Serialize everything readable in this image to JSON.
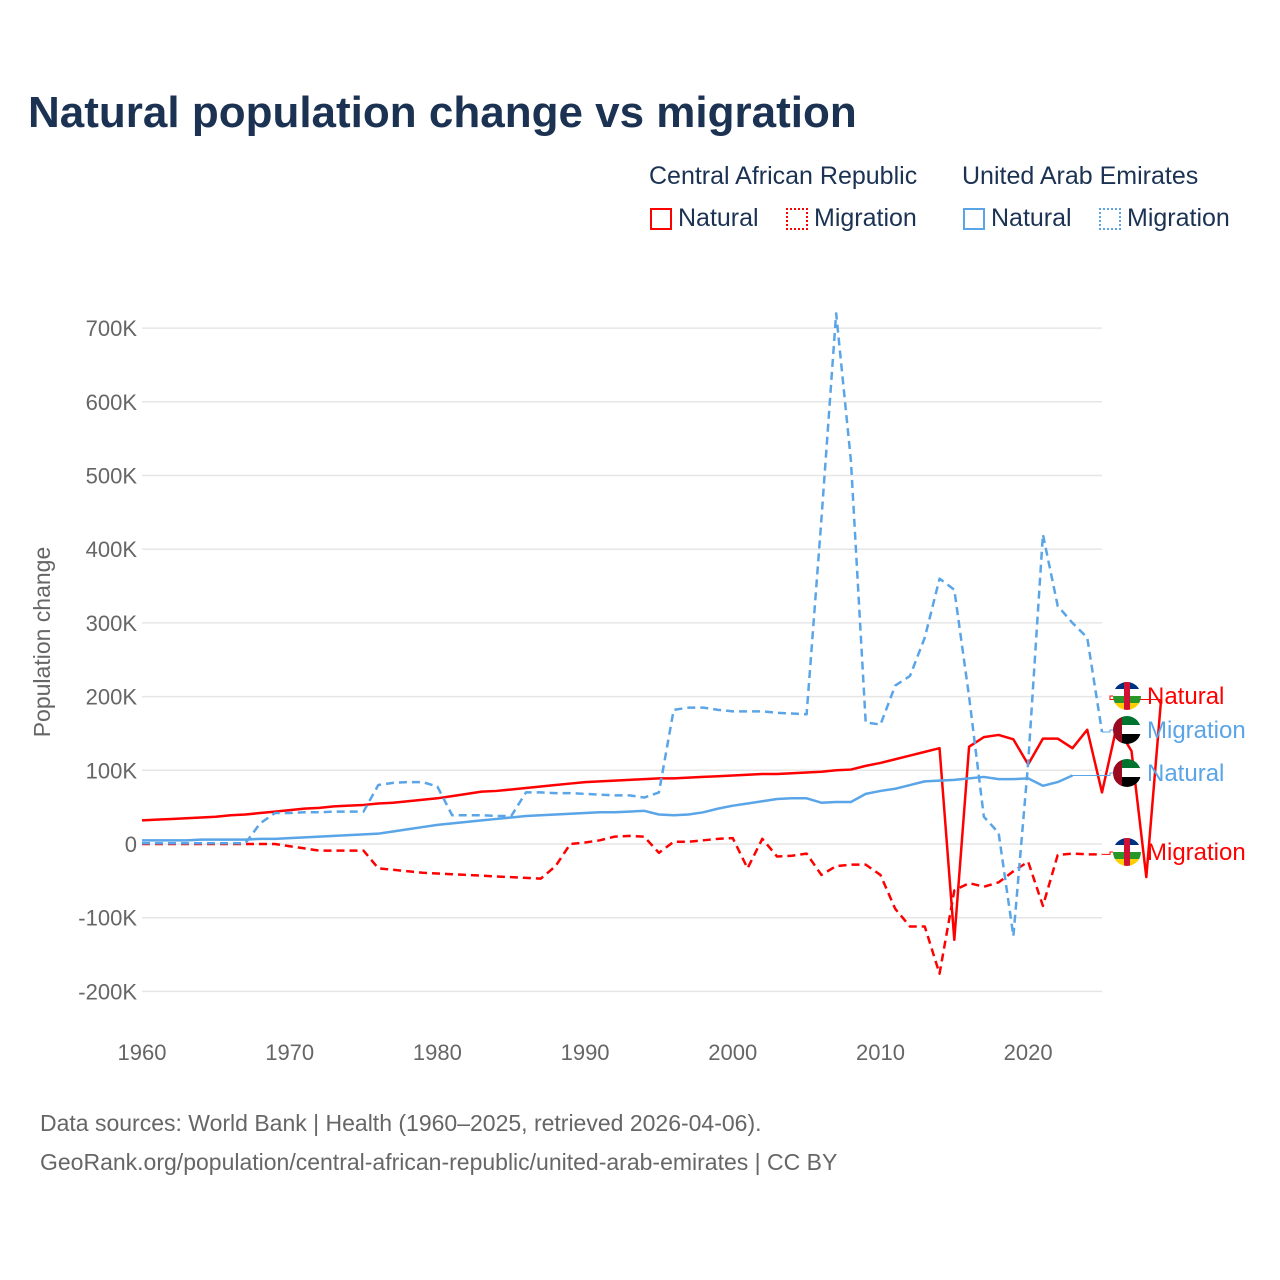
{
  "chart_data": {
    "type": "line",
    "title": "Natural population change vs migration",
    "xlabel": "",
    "ylabel": "Population change",
    "xlim": [
      1960,
      2025
    ],
    "ylim": [
      -200000,
      700000
    ],
    "x_ticks": [
      "1960",
      "1970",
      "1980",
      "1990",
      "2000",
      "2010",
      "2020"
    ],
    "y_ticks": [
      {
        "v": -200000,
        "label": "-200K"
      },
      {
        "v": -100000,
        "label": "-100K"
      },
      {
        "v": 0,
        "label": "0"
      },
      {
        "v": 100000,
        "label": "100K"
      },
      {
        "v": 200000,
        "label": "200K"
      },
      {
        "v": 300000,
        "label": "300K"
      },
      {
        "v": 400000,
        "label": "400K"
      },
      {
        "v": 500000,
        "label": "500K"
      },
      {
        "v": 600000,
        "label": "600K"
      },
      {
        "v": 700000,
        "label": "700K"
      }
    ],
    "grid": true,
    "legend": {
      "groups": [
        {
          "country": "Central African Republic",
          "items": [
            "Natural",
            "Migration"
          ]
        },
        {
          "country": "United Arab Emirates",
          "items": [
            "Natural",
            "Migration"
          ]
        }
      ],
      "placement": "top-right"
    },
    "series": [
      {
        "name": "Central African Republic – Natural",
        "label": "Natural",
        "color": "#ff0000",
        "dash": false,
        "start": 1960,
        "values": [
          32,
          33,
          34,
          35,
          36,
          37,
          39,
          40,
          42,
          44,
          46,
          48,
          49,
          51,
          52,
          53,
          55,
          56,
          58,
          60,
          62,
          65,
          68,
          71,
          72,
          74,
          76,
          78,
          80,
          82,
          84,
          85,
          86,
          87,
          88,
          89,
          89,
          90,
          91,
          92,
          93,
          94,
          95,
          95,
          96,
          97,
          98,
          100,
          101,
          106,
          110,
          115,
          120,
          125,
          130,
          -130,
          132,
          145,
          148,
          142,
          108,
          143,
          143,
          130,
          155,
          70,
          160,
          126,
          -45,
          196
        ]
      },
      {
        "name": "Central African Republic – Migration",
        "label": "Migration",
        "color": "#ff0000",
        "dash": true,
        "start": 1960,
        "values": [
          0,
          0,
          0,
          0,
          0,
          0,
          0,
          0,
          0,
          0,
          -3,
          -6,
          -9,
          -9,
          -9,
          -9,
          -33,
          -35,
          -37,
          -39,
          -40,
          -41,
          -42,
          -43,
          -44,
          -45,
          -46,
          -47,
          -30,
          0,
          2,
          5,
          10,
          11,
          10,
          -12,
          3,
          3,
          5,
          7,
          8,
          -33,
          7,
          -17,
          -16,
          -13,
          -42,
          -30,
          -28,
          -28,
          -42,
          -88,
          -112,
          -112,
          -176,
          -63,
          -53,
          -58,
          -52,
          -37,
          -24,
          -84,
          -15,
          -13,
          -14,
          -14
        ]
      },
      {
        "name": "United Arab Emirates – Natural",
        "label": "Natural",
        "color": "#5aa5e8",
        "dash": false,
        "start": 1960,
        "values": [
          5,
          5,
          5,
          5,
          6,
          6,
          6,
          6,
          7,
          7,
          8,
          9,
          10,
          11,
          12,
          13,
          14,
          17,
          20,
          23,
          26,
          28,
          30,
          32,
          34,
          36,
          38,
          39,
          40,
          41,
          42,
          43,
          43,
          44,
          45,
          40,
          39,
          40,
          43,
          48,
          52,
          55,
          58,
          61,
          62,
          62,
          56,
          57,
          57,
          68,
          72,
          75,
          80,
          85,
          86,
          87,
          89,
          91,
          88,
          88,
          89,
          79,
          84,
          93
        ]
      },
      {
        "name": "United Arab Emirates – Migration",
        "label": "Migration",
        "color": "#5aa5e8",
        "dash": true,
        "start": 1960,
        "values": [
          1,
          1,
          1,
          1,
          1,
          1,
          1,
          1,
          28,
          42,
          42,
          43,
          43,
          44,
          44,
          44,
          80,
          83,
          84,
          84,
          78,
          39,
          39,
          39,
          38,
          38,
          70,
          70,
          69,
          69,
          68,
          67,
          66,
          66,
          63,
          70,
          182,
          185,
          185,
          182,
          180,
          180,
          180,
          178,
          177,
          176,
          440,
          720,
          520,
          165,
          162,
          215,
          228,
          280,
          360,
          345,
          200,
          37,
          15,
          -125,
          110,
          420,
          323,
          300,
          280,
          152
        ]
      }
    ],
    "unit": "thousands",
    "end_labels": [
      {
        "text": "Natural",
        "color": "#ff0000",
        "flag": "car"
      },
      {
        "text": "Migration",
        "color": "#5aa5e8",
        "flag": "uae"
      },
      {
        "text": "Natural",
        "color": "#5aa5e8",
        "flag": "uae"
      },
      {
        "text": "Migration",
        "color": "#ff0000",
        "flag": "car"
      }
    ]
  },
  "footer": {
    "line1": "Data sources: World Bank | Health (1960–2025, retrieved 2026-04-06).",
    "line2": "GeoRank.org/population/central-african-republic/united-arab-emirates | CC BY"
  }
}
